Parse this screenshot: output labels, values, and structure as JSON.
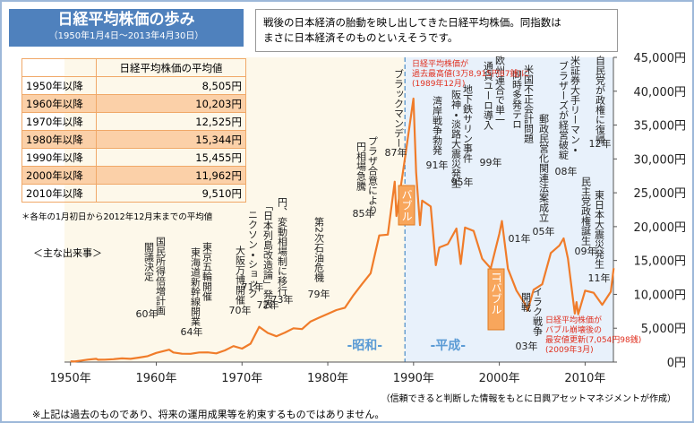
{
  "header": {
    "title": "日経平均株価の歩み",
    "subtitle": "（1950年1月4日～2013年4月30日）"
  },
  "description": [
    "戦後の日本経済の胎動を映し出してきた日経平均株価。同指数は",
    "まさに日本経済そのものといえそうです。"
  ],
  "table": {
    "header": "日経平均株価の平均値",
    "rows": [
      [
        "1950年以降",
        "8,505円"
      ],
      [
        "1960年以降",
        "10,203円"
      ],
      [
        "1970年以降",
        "12,525円"
      ],
      [
        "1980年以降",
        "15,344円"
      ],
      [
        "1990年以降",
        "15,455円"
      ],
      [
        "2000年以降",
        "11,962円"
      ],
      [
        "2010年以降",
        "9,510円"
      ]
    ]
  },
  "table_note": "＊各年の1月初日から2012年12月末までの平均値",
  "events_heading": "＜主な出来事＞",
  "chart_data": {
    "type": "line",
    "x": [
      1950,
      1950.5,
      1951,
      1952,
      1953,
      1953.2,
      1954,
      1955,
      1956,
      1957,
      1958,
      1959,
      1960,
      1961.5,
      1962,
      1963,
      1964,
      1965,
      1966,
      1967,
      1968,
      1969,
      1970,
      1971,
      1972,
      1973,
      1974,
      1975,
      1976,
      1977,
      1978,
      1979,
      1980,
      1981,
      1982,
      1983,
      1984,
      1985,
      1986,
      1987,
      1987.8,
      1988,
      1989,
      1989.99,
      1990.3,
      1990.75,
      1991,
      1992,
      1992.6,
      1993,
      1994,
      1995,
      1995.5,
      1996,
      1997,
      1998,
      1999,
      2000,
      2000.3,
      2001,
      2002,
      2003,
      2003.3,
      2004,
      2005,
      2006,
      2007,
      2007.5,
      2008,
      2008.8,
      2009,
      2009.2,
      2010,
      2011,
      2012,
      2013,
      2013.33
    ],
    "series": [
      {
        "name": "日経平均株価",
        "color": "#f07c2a",
        "values": [
          109,
          85,
          166,
          362,
          470,
          340,
          356,
          425,
          549,
          474,
          666,
          874,
          1356,
          1829,
          1420,
          1225,
          1216,
          1417,
          1430,
          1283,
          1714,
          2359,
          1987,
          2713,
          5207,
          4306,
          3817,
          4358,
          4990,
          4865,
          6001,
          6569,
          7116,
          7681,
          8016,
          9893,
          11542,
          13113,
          18701,
          18820,
          26646,
          21564,
          30159,
          38915,
          28002,
          20222,
          23848,
          22983,
          14309,
          16924,
          17417,
          19723,
          14485,
          19868,
          19361,
          15258,
          13842,
          18934,
          20833,
          13785,
          10542,
          8578,
          7607,
          10676,
          11488,
          16111,
          17225,
          18261,
          15307,
          7162,
          8859,
          7054.98,
          10546,
          10228,
          8455,
          10395,
          13860
        ]
      }
    ],
    "xlim": [
      1949.3,
      2013.3
    ],
    "xticks": [
      {
        "value": 1950,
        "label": "1950年"
      },
      {
        "value": 1960,
        "label": "1960年"
      },
      {
        "value": 1970,
        "label": "1970年"
      },
      {
        "value": 1980,
        "label": "1980年"
      },
      {
        "value": 1990,
        "label": "1990年"
      },
      {
        "value": 2000,
        "label": "2000年"
      },
      {
        "value": 2010,
        "label": "2010年"
      }
    ],
    "ylim": [
      0,
      45000
    ],
    "yticks": [
      {
        "value": 0,
        "label": "0円"
      },
      {
        "value": 5000,
        "label": "5,000円"
      },
      {
        "value": 10000,
        "label": "10,000円"
      },
      {
        "value": 15000,
        "label": "15,000円"
      },
      {
        "value": 20000,
        "label": "20,000円"
      },
      {
        "value": 25000,
        "label": "25,000円"
      },
      {
        "value": 30000,
        "label": "30,000円"
      },
      {
        "value": 35000,
        "label": "35,000円"
      },
      {
        "value": 40000,
        "label": "40,000円"
      },
      {
        "value": 45000,
        "label": "45,000円"
      }
    ],
    "grid": false,
    "eras": [
      {
        "label": "-昭和-",
        "from": 1949.3,
        "to": 1989
      },
      {
        "label": "-平成-",
        "from": 1989,
        "to": 2013.3
      }
    ],
    "annotations": [
      {
        "lines": [
          "国民所得倍増計画",
          "閣議決定"
        ],
        "year": "60年"
      },
      {
        "lines": [
          "東京五輪開催",
          "東海道新幹線開業"
        ],
        "year": "64年"
      },
      {
        "lines": [
          "大阪万博開催"
        ],
        "year": "70年"
      },
      {
        "lines": [
          "ニクソン・ショック"
        ],
        "year": "71年"
      },
      {
        "lines": [
          "「日本列島改造論」発表"
        ],
        "year": "72年"
      },
      {
        "lines": [
          "円、変動相場制に移行"
        ],
        "year": "73年"
      },
      {
        "lines": [
          "第2次石油危機"
        ],
        "year": "79年"
      },
      {
        "lines": [
          "プラザ合意により",
          "円相場急騰"
        ],
        "year": "85年"
      },
      {
        "lines": [
          "ブラックマンデー"
        ],
        "year": "87年"
      },
      {
        "lines": [
          "湾岸戦争勃発"
        ],
        "year": "91年"
      },
      {
        "lines": [
          "地下鉄サリン事件",
          "阪神・淡路大震災発生"
        ],
        "year": "95年"
      },
      {
        "lines": [
          "欧州連合で単一",
          "通貨ユーロ導入"
        ],
        "year": "99年"
      },
      {
        "lines": [
          "米国不正会計問題",
          "同時多発テロ"
        ],
        "year": "01年"
      },
      {
        "lines": [
          "郵政民営化関連法案成立"
        ],
        "year": "05年"
      },
      {
        "lines": [
          "米証券大手リーマン・",
          "ブラザーズが経営破綻"
        ],
        "year": "08年"
      },
      {
        "lines": [
          "自民党が政権に復帰"
        ],
        "year": "12年"
      },
      {
        "lines": [
          "民主党政権誕生"
        ],
        "year": "09年"
      },
      {
        "lines": [
          "東日本大震災発生"
        ],
        "year": "11年"
      },
      {
        "lines": [
          "イラク戦争",
          "開戦"
        ],
        "year": "03年"
      }
    ],
    "bubbles": [
      "バブル",
      "ITバブル"
    ],
    "notes": [
      [
        "日経平均株価が",
        "過去最高値(3万8,915円87銭)に",
        "(1989年12月)"
      ],
      [
        "日経平均株価が",
        "バブル崩壊後の",
        "最安値更新(7,054円98銭)",
        "(2009年3月)"
      ]
    ]
  },
  "footer": [
    "（信頼できると判断した情報をもとに日興アセットマネジメントが作成）",
    "※上記は過去のものであり、将来の運用成果等を約束するものではありません。"
  ]
}
